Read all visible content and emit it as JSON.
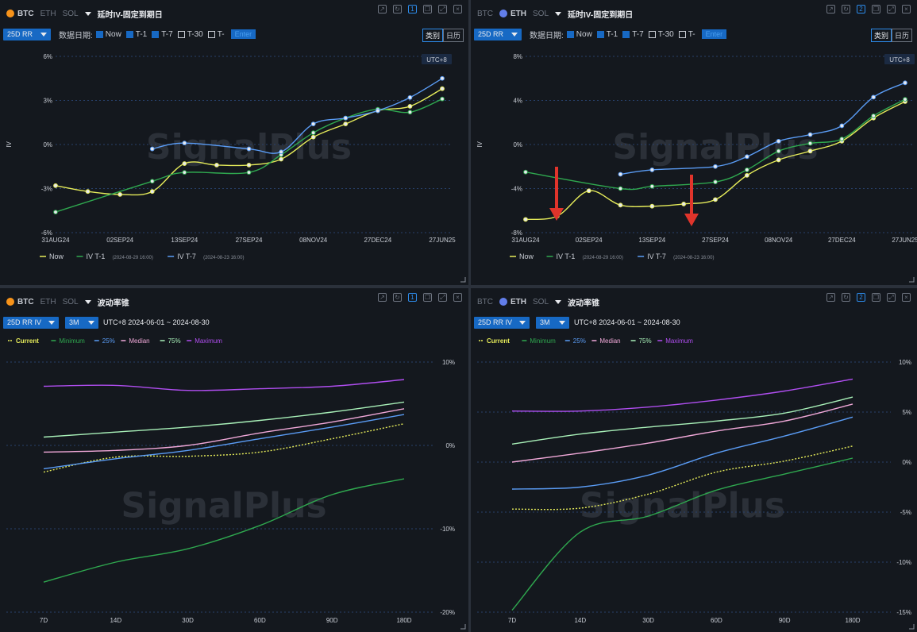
{
  "coins": [
    "BTC",
    "ETH",
    "SOL"
  ],
  "watermark": "SignalPlus",
  "utc_badge": "UTC+8",
  "date_label": "数据日期:",
  "checks": [
    {
      "label": "Now",
      "checked": true
    },
    {
      "label": "T-1",
      "checked": true
    },
    {
      "label": "T-7",
      "checked": true
    },
    {
      "label": "T-30",
      "checked": false
    },
    {
      "label": "T-",
      "checked": false
    }
  ],
  "enter_placeholder": "Enter",
  "seg_category": "类别",
  "seg_calendar": "日历",
  "panels": [
    {
      "active_coin": "BTC",
      "title": "延时IV-固定到期日",
      "metric": "25D RR",
      "layout_num": "1"
    },
    {
      "active_coin": "ETH",
      "title": "延时IV-固定到期日",
      "metric": "25D RR",
      "layout_num": "2"
    },
    {
      "active_coin": "BTC",
      "title": "波动率锥",
      "metric": "25D RR IV",
      "window": "3M",
      "range": "UTC+8 2024-06-01 ~ 2024-08-30",
      "layout_num": "1"
    },
    {
      "active_coin": "ETH",
      "title": "波动率锥",
      "metric": "25D RR IV",
      "window": "3M",
      "range": "UTC+8 2024-06-01 ~ 2024-08-30",
      "layout_num": "2"
    }
  ],
  "chart_data": [
    {
      "type": "line",
      "ylabel": "IV",
      "ylim": [
        -6,
        6
      ],
      "yticks": [
        "6%",
        "3%",
        "0%",
        "-3%",
        "-6%"
      ],
      "tick_values": [
        6,
        3,
        0,
        -3,
        -6
      ],
      "x_dates": [
        "31AUG24",
        "02SEP24",
        "13SEP24",
        "27SEP24",
        "08NOV24",
        "27DEC24",
        "27JUN25"
      ],
      "legend_position": "bottom-left",
      "series": [
        {
          "name": "Now",
          "color": "#e6ec5a",
          "values": [
            -2.8,
            -3.2,
            -3.4,
            -3.2,
            -1.3,
            -1.4,
            -1.4,
            -1.0,
            0.5,
            1.4,
            2.3,
            2.6,
            3.8
          ]
        },
        {
          "name": "IV T-1",
          "note": "(2024-08-29 16:00)",
          "color": "#2fa84f",
          "values": [
            -4.6,
            null,
            null,
            -2.5,
            -1.9,
            null,
            -1.9,
            -0.7,
            0.8,
            1.8,
            2.4,
            2.2,
            3.1
          ]
        },
        {
          "name": "IV T-7",
          "note": "(2024-08-23 16:00)",
          "color": "#5a9cf5",
          "values": [
            null,
            null,
            null,
            -0.3,
            0.1,
            null,
            -0.3,
            -0.5,
            1.4,
            1.8,
            2.3,
            3.2,
            4.5
          ]
        }
      ],
      "x_idx": [
        0,
        1,
        2,
        3,
        4,
        5,
        6,
        7,
        8,
        9,
        10,
        11,
        12
      ]
    },
    {
      "type": "line",
      "ylabel": "IV",
      "ylim": [
        -8,
        8
      ],
      "yticks": [
        "8%",
        "4%",
        "0%",
        "-4%",
        "-8%"
      ],
      "tick_values": [
        8,
        4,
        0,
        -4,
        -8
      ],
      "x_dates": [
        "31AUG24",
        "02SEP24",
        "13SEP24",
        "27SEP24",
        "08NOV24",
        "27DEC24",
        "27JUN25"
      ],
      "legend_position": "bottom-left",
      "series": [
        {
          "name": "Now",
          "color": "#e6ec5a",
          "values": [
            -6.8,
            -6.5,
            -4.2,
            -5.5,
            -5.6,
            -5.4,
            -5.0,
            -2.8,
            -1.4,
            -0.6,
            0.3,
            2.4,
            3.9
          ]
        },
        {
          "name": "IV T-1",
          "note": "(2024-08-29 16:00)",
          "color": "#2fa84f",
          "values": [
            -2.5,
            null,
            null,
            -4.0,
            -3.8,
            null,
            -3.4,
            -2.3,
            -0.6,
            0.1,
            0.5,
            2.6,
            4.1
          ]
        },
        {
          "name": "IV T-7",
          "note": "(2024-08-23 16:00)",
          "color": "#5a9cf5",
          "values": [
            null,
            null,
            null,
            -2.7,
            -2.3,
            null,
            -2.0,
            -1.1,
            0.3,
            0.9,
            1.7,
            4.3,
            5.6
          ]
        }
      ],
      "x_idx": [
        0,
        1,
        2,
        3,
        4,
        5,
        6,
        7,
        8,
        9,
        10,
        11,
        12
      ]
    },
    {
      "type": "line",
      "ylim": [
        -20,
        10
      ],
      "yticks": [
        "10%",
        "0%",
        "-10%",
        "-20%"
      ],
      "tick_values": [
        10,
        0,
        -10,
        -20
      ],
      "categories": [
        "7D",
        "14D",
        "30D",
        "60D",
        "90D",
        "180D"
      ],
      "legend_position": "top-left",
      "series": [
        {
          "name": "Current",
          "color": "#e6ec5a",
          "dashed": true,
          "values": [
            -3.2,
            -1.4,
            -1.3,
            -0.8,
            0.8,
            2.6
          ]
        },
        {
          "name": "Minimum",
          "color": "#2fa84f",
          "values": [
            -16.4,
            -14.0,
            -12.4,
            -9.6,
            -5.9,
            -4.0
          ]
        },
        {
          "name": "25%",
          "color": "#5a9cf5",
          "values": [
            -2.8,
            -1.6,
            -0.6,
            0.8,
            2.2,
            3.7
          ]
        },
        {
          "name": "Median",
          "color": "#f0a8d8",
          "values": [
            -0.8,
            -0.6,
            0.0,
            1.5,
            2.8,
            4.4
          ]
        },
        {
          "name": "75%",
          "color": "#a8f0b8",
          "values": [
            1.0,
            1.6,
            2.2,
            3.0,
            4.0,
            5.2
          ]
        },
        {
          "name": "Maximum",
          "color": "#b04ef0",
          "values": [
            7.1,
            7.2,
            6.6,
            6.8,
            7.1,
            7.9
          ]
        }
      ]
    },
    {
      "type": "line",
      "ylim": [
        -15,
        10
      ],
      "yticks": [
        "10%",
        "5%",
        "0%",
        "-5%",
        "-10%",
        "-15%"
      ],
      "tick_values": [
        10,
        5,
        0,
        -5,
        -10,
        -15
      ],
      "categories": [
        "7D",
        "14D",
        "30D",
        "60D",
        "90D",
        "180D"
      ],
      "legend_position": "top-left",
      "series": [
        {
          "name": "Current",
          "color": "#e6ec5a",
          "dashed": true,
          "values": [
            -4.7,
            -4.6,
            -3.2,
            -1.0,
            0.1,
            1.6
          ]
        },
        {
          "name": "Minimum",
          "color": "#2fa84f",
          "values": [
            -14.8,
            -7.0,
            -5.4,
            -2.8,
            -1.2,
            0.4
          ]
        },
        {
          "name": "25%",
          "color": "#5a9cf5",
          "values": [
            -2.7,
            -2.5,
            -1.3,
            0.9,
            2.6,
            4.5
          ]
        },
        {
          "name": "Median",
          "color": "#f0a8d8",
          "values": [
            0.0,
            0.9,
            1.9,
            3.1,
            4.1,
            5.8
          ]
        },
        {
          "name": "75%",
          "color": "#a8f0b8",
          "values": [
            1.8,
            2.8,
            3.5,
            4.1,
            4.9,
            6.5
          ]
        },
        {
          "name": "Maximum",
          "color": "#b04ef0",
          "values": [
            5.1,
            5.1,
            5.5,
            6.2,
            7.1,
            8.3
          ]
        }
      ]
    }
  ]
}
